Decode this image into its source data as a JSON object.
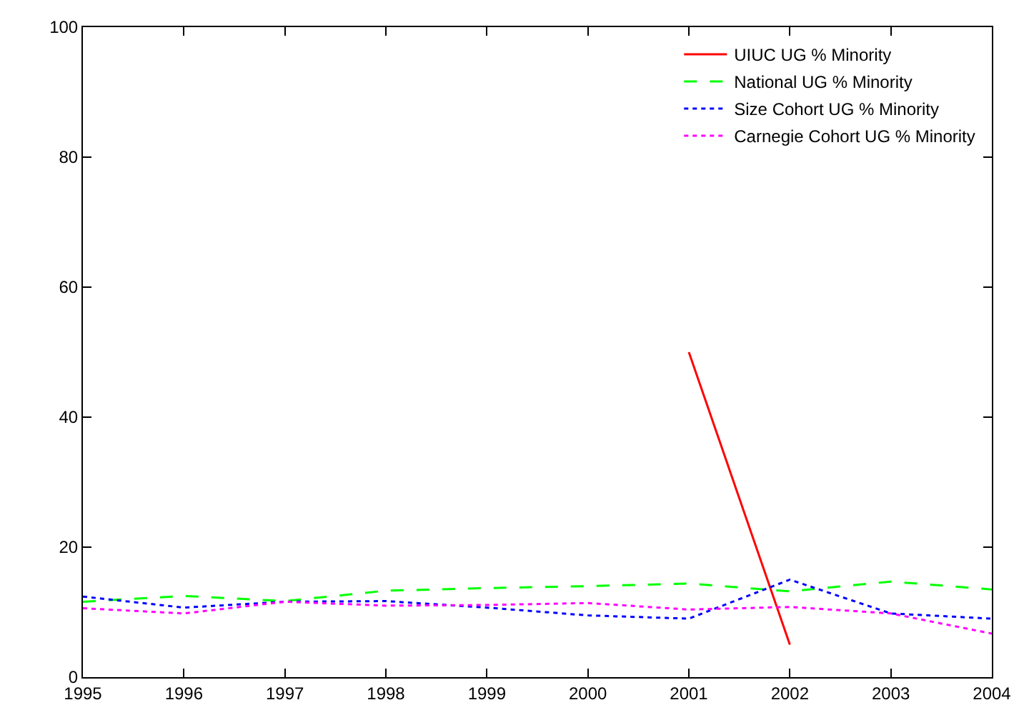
{
  "chart_data": {
    "type": "line",
    "x": [
      1995,
      1996,
      1997,
      1998,
      1999,
      2000,
      2001,
      2002,
      2003,
      2004
    ],
    "series": [
      {
        "name": "UIUC UG % Minority",
        "color": "#ff0000",
        "line_style": "solid",
        "values": [
          null,
          null,
          null,
          null,
          null,
          null,
          50,
          5,
          null,
          null
        ]
      },
      {
        "name": "National UG % Minority",
        "color": "#00ff00",
        "line_style": "dashed",
        "values": [
          11.6,
          12.5,
          11.7,
          13.3,
          13.7,
          14.0,
          14.4,
          13.2,
          14.7,
          13.5
        ]
      },
      {
        "name": "Size Cohort UG % Minority",
        "color": "#0000ff",
        "line_style": "dotted",
        "values": [
          12.4,
          10.7,
          11.6,
          11.7,
          10.7,
          9.5,
          9.0,
          15.0,
          9.8,
          9.0
        ]
      },
      {
        "name": "Carnegie Cohort UG % Minority",
        "color": "#ff00ff",
        "line_style": "dotted",
        "values": [
          10.6,
          9.8,
          11.6,
          11.0,
          11.1,
          11.4,
          10.4,
          10.8,
          9.8,
          6.7
        ]
      }
    ],
    "xlim": [
      1995,
      2004
    ],
    "xticks": [
      1995,
      1996,
      1997,
      1998,
      1999,
      2000,
      2001,
      2002,
      2003,
      2004
    ],
    "ylim": [
      0,
      100
    ],
    "yticks": [
      0,
      20,
      40,
      60,
      80,
      100
    ],
    "legend": "top right",
    "marker": "none"
  }
}
